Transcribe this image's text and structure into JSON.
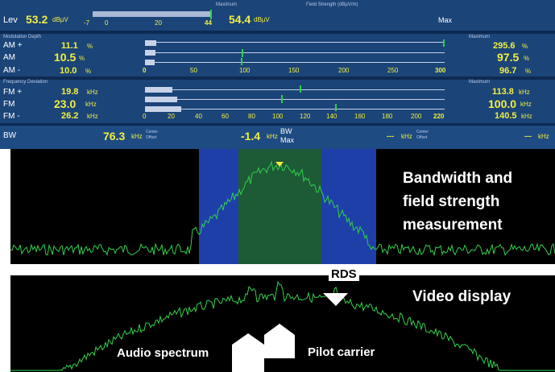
{
  "level": {
    "label": "Lev",
    "value": "53.2",
    "unit": "dBµV",
    "scale_ticks": [
      "-7",
      "0",
      "20",
      "44"
    ],
    "max_caption": "Maximum",
    "max_value": "54.4",
    "max_unit": "dBµV",
    "fs_caption": "Field Strength (dBµV/m)",
    "fs_max": "Max"
  },
  "modulation": {
    "caption": "Modulation Depth",
    "max_caption": "Maximum",
    "rows": [
      {
        "label": "AM +",
        "value": "11.1",
        "unit": "%",
        "max": "295.6",
        "max_unit": "%"
      },
      {
        "label": "AM",
        "value": "10.5",
        "unit": "%",
        "max": "97.5",
        "max_unit": "%"
      },
      {
        "label": "AM -",
        "value": "10.0",
        "unit": "%",
        "max": "96.7",
        "max_unit": "%"
      }
    ],
    "ticks": [
      "0",
      "50",
      "100",
      "150",
      "200",
      "250",
      "300"
    ]
  },
  "deviation": {
    "caption": "Frequency Deviation",
    "max_caption": "Maximum",
    "rows": [
      {
        "label": "FM +",
        "value": "19.8",
        "unit": "kHz",
        "max": "113.8",
        "max_unit": "kHz"
      },
      {
        "label": "FM",
        "value": "23.0",
        "unit": "kHz",
        "max": "100.0",
        "max_unit": "kHz"
      },
      {
        "label": "FM -",
        "value": "26.2",
        "unit": "kHz",
        "max": "140.5",
        "max_unit": "kHz"
      }
    ],
    "ticks": [
      "0",
      "20",
      "40",
      "60",
      "80",
      "100",
      "120",
      "140",
      "160",
      "180",
      "200",
      "220"
    ]
  },
  "bw": {
    "label": "BW",
    "value": "76.3",
    "unit": "kHz",
    "center_caption1": "Center",
    "center_caption2": "Offset",
    "offset": "-1.4",
    "offset_unit": "kHz",
    "bw_max1": "BW",
    "bw_max2": "Max",
    "dash1": "---",
    "unit2": "kHz",
    "center2_caption1": "Center",
    "center2_caption2": "Offset",
    "dash2": "---",
    "unit3": "kHz"
  },
  "annotations": {
    "bw_line1": "Bandwidth and",
    "bw_line2": "field strength",
    "bw_line3": "measurement",
    "rds": "RDS",
    "video": "Video display",
    "audio": "Audio spectrum",
    "pilot": "Pilot carrier"
  },
  "colors": {
    "panel": "#1b4478",
    "value": "#f2ee40",
    "trace": "#2fd14b",
    "band_outer": "#1f3fa8",
    "band_inner": "#1d5a36"
  }
}
